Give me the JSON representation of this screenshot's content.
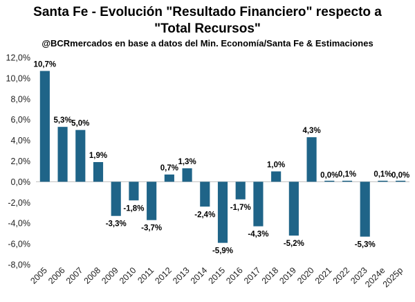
{
  "chart_data": {
    "type": "bar",
    "title_line1": "Santa Fe - Evolución \"Resultado Financiero\" respecto a",
    "title_line2": "\"Total Recursos\"",
    "subtitle": "@BCRmercados en base a datos del Min. Economía/Santa Fe & Estimaciones",
    "xlabel": "",
    "ylabel": "",
    "ylim": [
      -8,
      12
    ],
    "yticks": [
      12,
      10,
      8,
      6,
      4,
      2,
      0,
      -2,
      -4,
      -6,
      -8
    ],
    "ytick_labels": [
      "12,0%",
      "10,0%",
      "8,0%",
      "6,0%",
      "4,0%",
      "2,0%",
      "0,0%",
      "-2,0%",
      "-4,0%",
      "-6,0%",
      "-8,0%"
    ],
    "grid": false,
    "legend": "none",
    "bar_color": "#1f6488",
    "categories": [
      "2005",
      "2006",
      "2007",
      "2008",
      "2009",
      "2010",
      "2011",
      "2012",
      "2013",
      "2014",
      "2015",
      "2016",
      "2017",
      "2018",
      "2019",
      "2020",
      "2021",
      "2022",
      "2023",
      "2024e",
      "2025p"
    ],
    "values": [
      10.7,
      5.3,
      5.0,
      1.9,
      -3.3,
      -1.8,
      -3.7,
      0.7,
      1.3,
      -2.4,
      -5.9,
      -1.7,
      -4.3,
      1.0,
      -5.2,
      4.3,
      0.0,
      0.1,
      -5.3,
      0.1,
      0.0
    ],
    "data_labels": [
      "10,7%",
      "5,3%",
      "5,0%",
      "1,9%",
      "-3,3%",
      "-1,8%",
      "-3,7%",
      "0,7%",
      "1,3%",
      "-2,4%",
      "-5,9%",
      "-1,7%",
      "-4,3%",
      "1,0%",
      "-5,2%",
      "4,3%",
      "0,0%",
      "0,1%",
      "-5,3%",
      "0,1%",
      "0,0%"
    ]
  }
}
